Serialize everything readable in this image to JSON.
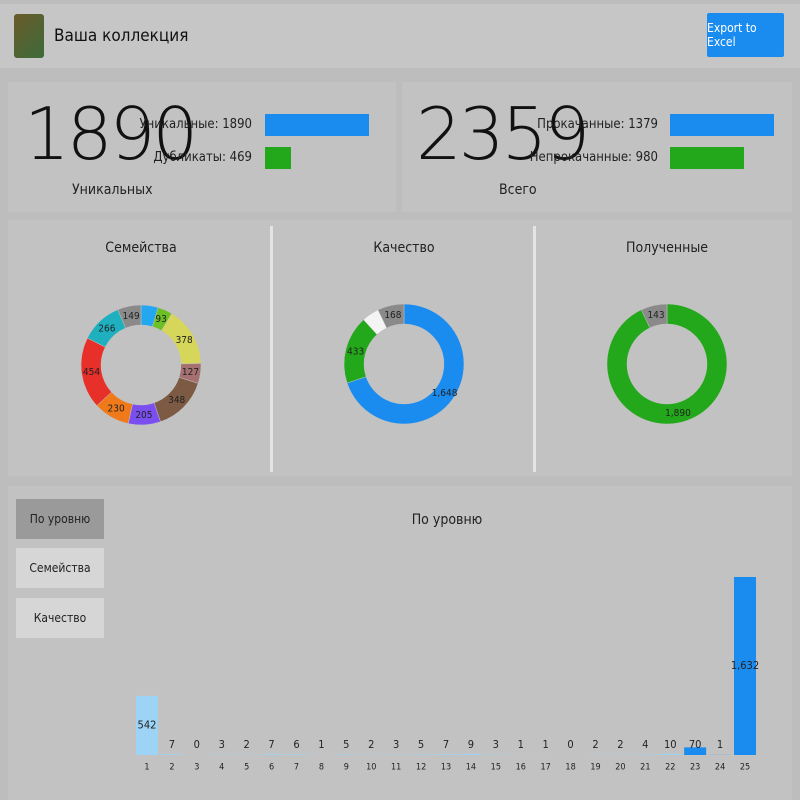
{
  "header": {
    "title": "Ваша коллекция",
    "button": "Export to Excel"
  },
  "stats": [
    {
      "number": "1890",
      "caption": "Уникальных",
      "bars": [
        {
          "label": "Уникальные: 1890",
          "value": 1890,
          "color": "#1a8cf0"
        },
        {
          "label": "Дубликаты: 469",
          "value": 469,
          "color": "#22a81a"
        }
      ]
    },
    {
      "number": "2359",
      "caption": "Всего",
      "bars": [
        {
          "label": "Прокачанные: 1379",
          "value": 1379,
          "color": "#1a8cf0"
        },
        {
          "label": "Непрокачанные: 980",
          "value": 980,
          "color": "#22a81a"
        }
      ]
    }
  ],
  "menu": [
    "По уровню",
    "Семейства",
    "Качество"
  ],
  "chart_data": [
    {
      "type": "pie",
      "title": "Семейства",
      "values": [
        109,
        93,
        378,
        127,
        348,
        205,
        230,
        454,
        266,
        149
      ],
      "value_labels": [
        null,
        "93",
        "378",
        "127",
        "348",
        "205",
        "230",
        "454",
        "266",
        "149"
      ],
      "colors": [
        "#22a7f0",
        "#6cc024",
        "#d6d65a",
        "#a57070",
        "#7d5a44",
        "#7b4ef0",
        "#f07a1a",
        "#e8302a",
        "#1fb0c0",
        "#8a8a8a"
      ]
    },
    {
      "type": "pie",
      "title": "Качество",
      "values": [
        1648,
        433,
        110,
        168
      ],
      "value_labels": [
        "1,648",
        "433",
        null,
        "168"
      ],
      "colors": [
        "#1a8cf0",
        "#22a81a",
        "#f4f4f4",
        "#8a8a8a"
      ]
    },
    {
      "type": "pie",
      "title": "Полученные",
      "values": [
        1890,
        143
      ],
      "value_labels": [
        "1,890",
        "143"
      ],
      "colors": [
        "#22a81a",
        "#8a8a8a"
      ]
    },
    {
      "type": "bar",
      "title": "По уровню",
      "categories": [
        "1",
        "2",
        "3",
        "4",
        "5",
        "6",
        "7",
        "8",
        "9",
        "10",
        "11",
        "12",
        "13",
        "14",
        "15",
        "16",
        "17",
        "18",
        "19",
        "20",
        "21",
        "22",
        "23",
        "24",
        "25"
      ],
      "values": [
        542,
        7,
        0,
        3,
        2,
        7,
        6,
        1,
        5,
        2,
        3,
        5,
        7,
        9,
        3,
        1,
        1,
        0,
        2,
        2,
        4,
        10,
        70,
        1,
        1632
      ],
      "value_labels": [
        "542",
        "7",
        "0",
        "3",
        "2",
        "7",
        "6",
        "1",
        "5",
        "2",
        "3",
        "5",
        "7",
        "9",
        "3",
        "1",
        "1",
        "0",
        "2",
        "2",
        "4",
        "10",
        "70",
        "1",
        "1,632"
      ],
      "colors": [
        "#9dd3f5",
        "#9dd3f5",
        "#9dd3f5",
        "#9dd3f5",
        "#9dd3f5",
        "#9dd3f5",
        "#9dd3f5",
        "#9dd3f5",
        "#9dd3f5",
        "#9dd3f5",
        "#9dd3f5",
        "#9dd3f5",
        "#9dd3f5",
        "#9dd3f5",
        "#9dd3f5",
        "#9dd3f5",
        "#9dd3f5",
        "#9dd3f5",
        "#9dd3f5",
        "#9dd3f5",
        "#9dd3f5",
        "#9dd3f5",
        "#1a8cf0",
        "#1a8cf0",
        "#1a8cf0"
      ]
    }
  ]
}
